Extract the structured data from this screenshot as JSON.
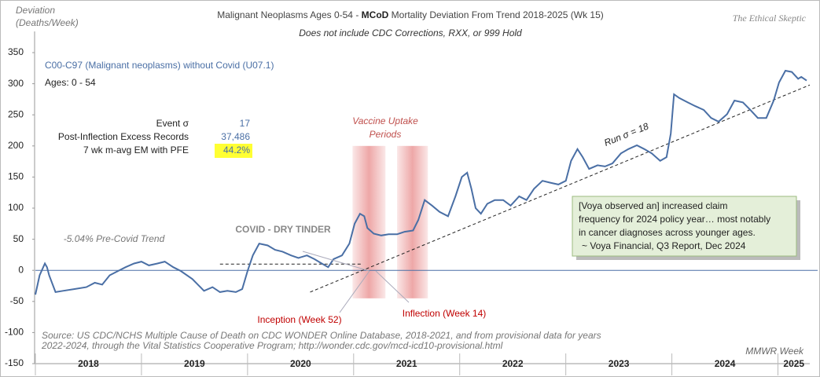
{
  "chart_data": {
    "type": "line",
    "title_parts": [
      "Malignant Neoplasms Ages 0-54 - ",
      "MCoD",
      " Mortality Deviation From Trend  2018-2025 (Wk 15)"
    ],
    "subtitle": "Does not include CDC Corrections, RXX, or 999 Hold",
    "y_label": [
      "Deviation",
      "(Deaths/Week)"
    ],
    "brand": "The Ethical Skeptic",
    "x_label": "MMWR Week",
    "source": [
      "Source: US CDC/NCHS Multiple Cause of Death on CDC WONDER Online Database, 2018-2021, and from provisional data for years",
      "2022-2024, through the Vital Statistics Cooperative Program; http://wonder.cdc.gov/mcd-icd10-provisional.html"
    ],
    "ages": "Ages: 0 - 54",
    "stats": [
      {
        "label": "Event σ",
        "value": "17"
      },
      {
        "label": "Post-Inflection Excess Records",
        "value": "37,486"
      },
      {
        "label": "7 wk m-avg EM with PFE",
        "value": "44.2%"
      }
    ],
    "annotations": {
      "pre_covid": "-5.04% Pre-Covid Trend",
      "dry_tinder": "COVID - DRY TINDER",
      "vaccine": [
        "Vaccine Uptake",
        "Periods"
      ],
      "inception": "Inception (Week 52)",
      "inflection": "Inflection (Week 14)",
      "run": "Run σ = 18"
    },
    "quote": [
      "[Voya observed  an] increased claim",
      "frequency for 2024 policy year… most notably",
      "in cancer diagnoses across younger ages.",
      "~ Voya Financial, Q3 Report, Dec 2024"
    ],
    "year_labels": [
      "2018",
      "2019",
      "2020",
      "2021",
      "2022",
      "2023",
      "2024",
      "2025"
    ],
    "year_starts": [
      2018,
      2019,
      2020,
      2021,
      2022,
      2023,
      2024,
      2025
    ],
    "xlim": [
      2018,
      2025.3
    ],
    "ylim": [
      -150,
      350
    ],
    "yticks": [
      -150,
      -100,
      -50,
      0,
      50,
      100,
      150,
      200,
      250,
      300,
      350
    ],
    "zero_line": 0,
    "trend_line": {
      "x": [
        2020.59,
        2025.3
      ],
      "values": [
        -35,
        298
      ]
    },
    "tinder_line": {
      "x": [
        2019.74,
        2021.07
      ],
      "values": [
        10,
        10
      ]
    },
    "shaded_periods": [
      [
        2020.99,
        2021.3
      ],
      [
        2021.41,
        2021.7
      ]
    ],
    "shade_ylim": [
      -45,
      200
    ],
    "series": [
      {
        "name": "C00-C97 (Malignant neoplasms) without Covid (U07.1)",
        "color": "#4a6fa5",
        "x": [
          2018.0,
          2018.04,
          2018.09,
          2018.11,
          2018.13,
          2018.19,
          2018.26,
          2018.37,
          2018.48,
          2018.56,
          2018.63,
          2018.7,
          2018.78,
          2018.85,
          2018.93,
          2019.0,
          2019.07,
          2019.15,
          2019.22,
          2019.3,
          2019.37,
          2019.48,
          2019.59,
          2019.67,
          2019.74,
          2019.81,
          2019.89,
          2019.95,
          2020.0,
          2020.05,
          2020.11,
          2020.19,
          2020.26,
          2020.33,
          2020.41,
          2020.48,
          2020.56,
          2020.63,
          2020.7,
          2020.76,
          2020.81,
          2020.89,
          2020.96,
          2021.01,
          2021.06,
          2021.1,
          2021.13,
          2021.19,
          2021.26,
          2021.33,
          2021.41,
          2021.48,
          2021.56,
          2021.61,
          2021.67,
          2021.74,
          2021.81,
          2021.89,
          2021.96,
          2022.02,
          2022.07,
          2022.11,
          2022.15,
          2022.2,
          2022.26,
          2022.33,
          2022.41,
          2022.48,
          2022.56,
          2022.63,
          2022.7,
          2022.78,
          2022.85,
          2022.93,
          2023.0,
          2023.05,
          2023.11,
          2023.16,
          2023.22,
          2023.3,
          2023.37,
          2023.44,
          2023.52,
          2023.59,
          2023.67,
          2023.74,
          2023.81,
          2023.89,
          2023.95,
          2023.99,
          2024.02,
          2024.07,
          2024.15,
          2024.22,
          2024.3,
          2024.37,
          2024.44,
          2024.52,
          2024.59,
          2024.67,
          2024.74,
          2024.81,
          2024.89,
          2024.96,
          2025.01,
          2025.07,
          2025.13,
          2025.19,
          2025.22,
          2025.27
        ],
        "values": [
          -39,
          -8,
          11,
          5,
          -8,
          -35,
          -33,
          -30,
          -27,
          -20,
          -23,
          -8,
          -1,
          5,
          11,
          14,
          8,
          11,
          14,
          5,
          -1,
          -14,
          -33,
          -27,
          -35,
          -33,
          -35,
          -30,
          -1,
          24,
          43,
          40,
          33,
          30,
          24,
          20,
          24,
          18,
          11,
          5,
          18,
          24,
          43,
          75,
          91,
          87,
          68,
          59,
          56,
          58,
          58,
          62,
          64,
          81,
          113,
          104,
          94,
          87,
          119,
          150,
          157,
          131,
          100,
          91,
          107,
          113,
          113,
          104,
          119,
          113,
          131,
          144,
          141,
          138,
          144,
          176,
          195,
          182,
          163,
          169,
          167,
          172,
          188,
          195,
          201,
          195,
          188,
          176,
          182,
          220,
          283,
          277,
          270,
          264,
          258,
          245,
          239,
          251,
          273,
          270,
          258,
          245,
          245,
          273,
          302,
          321,
          319,
          308,
          311,
          305
        ]
      }
    ]
  }
}
